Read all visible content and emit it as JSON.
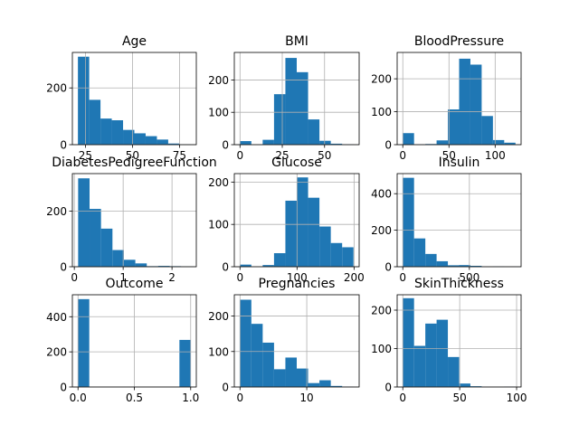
{
  "figure": {
    "background": "#ffffff",
    "bar_color": "#1f77b4",
    "grid_color": "#b0b0b0"
  },
  "chart_data": [
    {
      "type": "bar",
      "title": "Age",
      "xlabel": "",
      "ylabel": "",
      "grid": true,
      "xlim": [
        18.05,
        83.95
      ],
      "ylim": [
        0,
        325
      ],
      "xticks": [
        25,
        50,
        75
      ],
      "xticklabels": [
        "25",
        "50",
        "75"
      ],
      "yticks": [
        0,
        200
      ],
      "yticklabels": [
        "0",
        "200"
      ],
      "bin_edges": [
        21,
        27,
        33,
        39,
        45,
        51,
        57,
        63,
        69,
        75,
        81
      ],
      "values": [
        310,
        158,
        92,
        86,
        52,
        40,
        30,
        18,
        4,
        1
      ]
    },
    {
      "type": "bar",
      "title": "BMI",
      "xlabel": "",
      "ylabel": "",
      "grid": true,
      "xlim": [
        -3.355,
        70.455
      ],
      "ylim": [
        0,
        285
      ],
      "xticks": [
        0,
        25,
        50
      ],
      "xticklabels": [
        "0",
        "25",
        "50"
      ],
      "yticks": [
        0,
        100,
        200
      ],
      "yticklabels": [
        "0",
        "100",
        "200"
      ],
      "bin_edges": [
        0,
        6.71,
        13.42,
        20.13,
        26.84,
        33.55,
        40.26,
        46.97,
        53.68,
        60.39,
        67.1
      ],
      "values": [
        11,
        0,
        15,
        156,
        268,
        224,
        78,
        12,
        3,
        1
      ]
    },
    {
      "type": "bar",
      "title": "BloodPressure",
      "xlabel": "",
      "ylabel": "",
      "grid": true,
      "xlim": [
        -6.1,
        128.1
      ],
      "ylim": [
        0,
        280
      ],
      "xticks": [
        0,
        50,
        100
      ],
      "xticklabels": [
        "0",
        "50",
        "100"
      ],
      "yticks": [
        0,
        100,
        200
      ],
      "yticklabels": [
        "0",
        "100",
        "200"
      ],
      "bin_edges": [
        0,
        12.2,
        24.4,
        36.6,
        48.8,
        61,
        73.2,
        85.4,
        97.6,
        109.8,
        122
      ],
      "values": [
        35,
        1,
        2,
        13,
        107,
        261,
        243,
        87,
        14,
        6
      ]
    },
    {
      "type": "bar",
      "title": "DiabetesPedigreeFunction",
      "xlabel": "",
      "ylabel": "",
      "grid": true,
      "xlim": [
        -0.04,
        2.498
      ],
      "ylim": [
        0,
        335
      ],
      "xticks": [
        0,
        1,
        2
      ],
      "xticklabels": [
        "0",
        "1",
        "2"
      ],
      "yticks": [
        0,
        200
      ],
      "yticklabels": [
        "0",
        "200"
      ],
      "bin_edges": [
        0.078,
        0.3122,
        0.5464,
        0.7806,
        1.0148,
        1.249,
        1.4832,
        1.7174,
        1.9516,
        2.1858,
        2.42
      ],
      "values": [
        318,
        208,
        137,
        60,
        25,
        12,
        2,
        3,
        2,
        1
      ]
    },
    {
      "type": "bar",
      "title": "Glucose",
      "xlabel": "",
      "ylabel": "",
      "grid": true,
      "xlim": [
        -9.95,
        208.95
      ],
      "ylim": [
        0,
        220
      ],
      "xticks": [
        0,
        100,
        200
      ],
      "xticklabels": [
        "0",
        "100",
        "200"
      ],
      "yticks": [
        0,
        100,
        200
      ],
      "yticklabels": [
        "0",
        "100",
        "200"
      ],
      "bin_edges": [
        0,
        19.9,
        39.8,
        59.7,
        79.6,
        99.5,
        119.4,
        139.3,
        159.2,
        179.1,
        199
      ],
      "values": [
        5,
        0,
        4,
        32,
        156,
        211,
        163,
        95,
        56,
        46
      ]
    },
    {
      "type": "bar",
      "title": "Insulin",
      "xlabel": "",
      "ylabel": "",
      "grid": true,
      "xlim": [
        -42.3,
        888.3
      ],
      "ylim": [
        0,
        510
      ],
      "xticks": [
        0,
        500
      ],
      "xticklabels": [
        "0",
        "500"
      ],
      "yticks": [
        0,
        200,
        400
      ],
      "yticklabels": [
        "0",
        "200",
        "400"
      ],
      "bin_edges": [
        0,
        84.6,
        169.2,
        253.8,
        338.4,
        423,
        507.6,
        592.2,
        676.8,
        761.4,
        846
      ],
      "values": [
        487,
        155,
        70,
        30,
        8,
        9,
        5,
        1,
        2,
        1
      ]
    },
    {
      "type": "bar",
      "title": "Outcome",
      "xlabel": "",
      "ylabel": "",
      "grid": true,
      "xlim": [
        -0.05,
        1.05
      ],
      "ylim": [
        0,
        525
      ],
      "xticks": [
        0,
        0.5,
        1
      ],
      "xticklabels": [
        "0.0",
        "0.5",
        "1.0"
      ],
      "yticks": [
        0,
        200,
        400
      ],
      "yticklabels": [
        "0",
        "200",
        "400"
      ],
      "bin_edges": [
        0,
        0.1,
        0.2,
        0.3,
        0.4,
        0.5,
        0.6,
        0.7,
        0.8,
        0.9,
        1.0
      ],
      "values": [
        500,
        0,
        0,
        0,
        0,
        0,
        0,
        0,
        0,
        268
      ]
    },
    {
      "type": "bar",
      "title": "Pregnancies",
      "xlabel": "",
      "ylabel": "",
      "grid": true,
      "xlim": [
        -0.85,
        17.85
      ],
      "ylim": [
        0,
        260
      ],
      "xticks": [
        0,
        10
      ],
      "xticklabels": [
        "0",
        "10"
      ],
      "yticks": [
        0,
        100,
        200
      ],
      "yticklabels": [
        "0",
        "100",
        "200"
      ],
      "bin_edges": [
        0,
        1.7,
        3.4,
        5.1,
        6.8,
        8.5,
        10.2,
        11.9,
        13.6,
        15.3,
        17
      ],
      "values": [
        246,
        178,
        125,
        50,
        83,
        52,
        11,
        19,
        3,
        1
      ]
    },
    {
      "type": "bar",
      "title": "SkinThickness",
      "xlabel": "",
      "ylabel": "",
      "grid": true,
      "xlim": [
        -4.95,
        103.95
      ],
      "ylim": [
        0,
        240
      ],
      "xticks": [
        0,
        50,
        100
      ],
      "xticklabels": [
        "0",
        "50",
        "100"
      ],
      "yticks": [
        0,
        100,
        200
      ],
      "yticklabels": [
        "0",
        "100",
        "200"
      ],
      "bin_edges": [
        0,
        9.9,
        19.8,
        29.7,
        39.6,
        49.5,
        59.4,
        69.3,
        79.2,
        89.1,
        99
      ],
      "values": [
        231,
        107,
        165,
        175,
        78,
        9,
        2,
        0,
        0,
        1
      ]
    }
  ]
}
